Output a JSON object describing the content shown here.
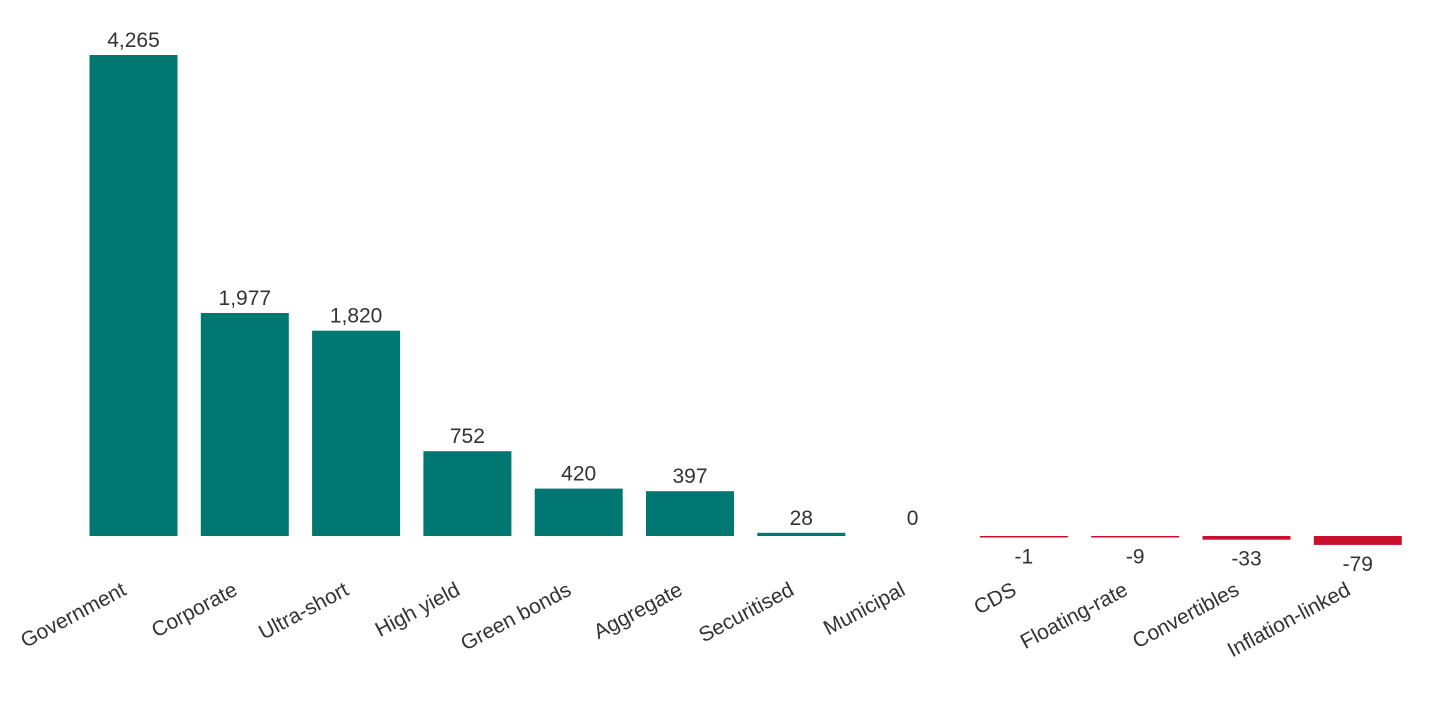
{
  "chart_data": {
    "type": "bar",
    "categories": [
      "Government",
      "Corporate",
      "Ultra-short",
      "High yield",
      "Green bonds",
      "Aggregate",
      "Securitised",
      "Municipal",
      "CDS",
      "Floating-rate",
      "Convertibles",
      "Inflation-linked"
    ],
    "values": [
      4265,
      1977,
      1820,
      752,
      420,
      397,
      28,
      0,
      -1,
      -9,
      -33,
      -79
    ],
    "data_labels": [
      "4,265",
      "1,977",
      "1,820",
      "752",
      "420",
      "397",
      "28",
      "0",
      "-1",
      "-9",
      "-33",
      "-79"
    ],
    "title": "",
    "xlabel": "",
    "ylabel": "",
    "grid": false,
    "legend": "none",
    "colors": {
      "positive": "#007770",
      "negative": "#c8102e"
    }
  }
}
